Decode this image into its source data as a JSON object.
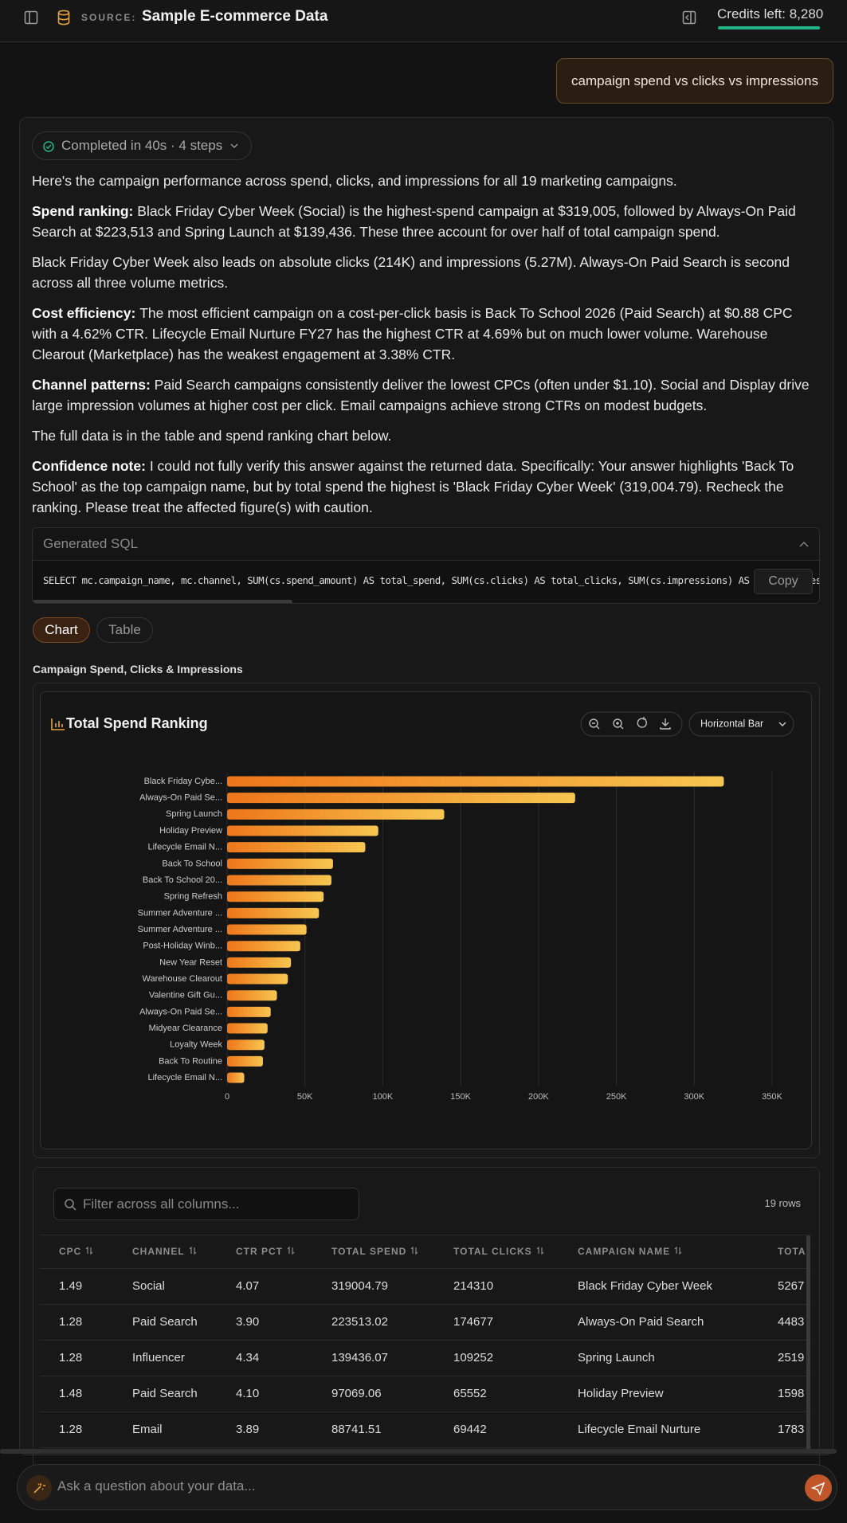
{
  "header": {
    "source_label": "SOURCE:",
    "source_name": "Sample E-commerce Data",
    "credits": "Credits left: 8,280"
  },
  "user_message": "campaign spend vs clicks vs impressions",
  "response": {
    "status": "Completed in 40s · 4 steps",
    "paragraphs": [
      {
        "text": "Here's the campaign performance across spend, clicks, and impressions for all 19 marketing campaigns."
      },
      {
        "lead": "Spend ranking:",
        "text": "Black Friday Cyber Week (Social) is the highest-spend campaign at $319,005, followed by Always-On Paid Search at $223,513 and Spring Launch at $139,436. These three account for over half of total campaign spend."
      },
      {
        "text": "Black Friday Cyber Week also leads on absolute clicks (214K) and impressions (5.27M). Always-On Paid Search is second across all three volume metrics."
      },
      {
        "lead": "Cost efficiency:",
        "text": "The most efficient campaign on a cost-per-click basis is Back To School 2026 (Paid Search) at $0.88 CPC with a 4.62% CTR. Lifecycle Email Nurture FY27 has the highest CTR at 4.69% but on much lower volume. Warehouse Clearout (Marketplace) has the weakest engagement at 3.38% CTR."
      },
      {
        "lead": "Channel patterns:",
        "text": "Paid Search campaigns consistently deliver the lowest CPCs (often under $1.10). Social and Display drive large impression volumes at higher cost per click. Email campaigns achieve strong CTRs on modest budgets."
      },
      {
        "text": "The full data is in the table and spend ranking chart below."
      },
      {
        "lead": "Confidence note:",
        "text": "I could not fully verify this answer against the returned data. Specifically: Your answer highlights 'Back To School' as the top campaign name, but by total spend the highest is 'Black Friday Cyber Week' (319,004.79). Recheck the ranking. Please treat the affected figure(s) with caution."
      }
    ],
    "sql": {
      "label": "Generated SQL",
      "query": "SELECT mc.campaign_name, mc.channel, SUM(cs.spend_amount) AS total_spend, SUM(cs.clicks) AS total_clicks, SUM(cs.impressions) AS total_impressions",
      "copy": "Copy"
    },
    "tabs": [
      "Chart",
      "Table"
    ],
    "section_title": "Campaign Spend, Clicks & Impressions"
  },
  "chart_data": {
    "type": "bar",
    "orientation": "horizontal",
    "title": "Total Spend Ranking",
    "selector": "Horizontal Bar",
    "categories": [
      "Black Friday Cybe...",
      "Always-On Paid Se...",
      "Spring Launch",
      "Holiday Preview",
      "Lifecycle Email N...",
      "Back To School",
      "Back To School 20...",
      "Spring Refresh",
      "Summer Adventure ...",
      "Summer Adventure ...",
      "Post-Holiday Winb...",
      "New Year Reset",
      "Warehouse Clearout",
      "Valentine Gift Gu...",
      "Always-On Paid Se...",
      "Midyear Clearance",
      "Loyalty Week",
      "Back To Routine",
      "Lifecycle Email N..."
    ],
    "values": [
      319004.79,
      223513.02,
      139436.07,
      97069.06,
      88741.51,
      68000,
      67000,
      62000,
      59000,
      51000,
      47000,
      41000,
      39000,
      32000,
      28000,
      26000,
      24000,
      23000,
      11000
    ],
    "gradient": [
      "#ee761a",
      "#f7c650"
    ],
    "xlim": [
      0,
      350000
    ],
    "xticks": [
      0,
      {
        "value": 50000,
        "label": "50K"
      },
      {
        "value": 100000,
        "label": "100K"
      },
      {
        "value": 150000,
        "label": "150K"
      },
      {
        "value": 200000,
        "label": "200K"
      },
      {
        "value": 250000,
        "label": "250K"
      },
      {
        "value": 300000,
        "label": "300K"
      },
      {
        "value": 350000,
        "label": "350K"
      }
    ],
    "grid": true
  },
  "table": {
    "filter_placeholder": "Filter across all columns...",
    "row_count": "19 rows",
    "columns": [
      "CPC",
      "CHANNEL",
      "CTR PCT",
      "TOTAL SPEND",
      "TOTAL CLICKS",
      "CAMPAIGN NAME",
      "TOTA"
    ],
    "rows": [
      [
        "1.49",
        "Social",
        "4.07",
        "319004.79",
        "214310",
        "Black Friday Cyber Week",
        "5267"
      ],
      [
        "1.28",
        "Paid Search",
        "3.90",
        "223513.02",
        "174677",
        "Always-On Paid Search",
        "4483"
      ],
      [
        "1.28",
        "Influencer",
        "4.34",
        "139436.07",
        "109252",
        "Spring Launch",
        "2519"
      ],
      [
        "1.48",
        "Paid Search",
        "4.10",
        "97069.06",
        "65552",
        "Holiday Preview",
        "1598"
      ],
      [
        "1.28",
        "Email",
        "3.89",
        "88741.51",
        "69442",
        "Lifecycle Email Nurture",
        "1783"
      ]
    ]
  },
  "input": {
    "placeholder": "Ask a question about your data..."
  }
}
